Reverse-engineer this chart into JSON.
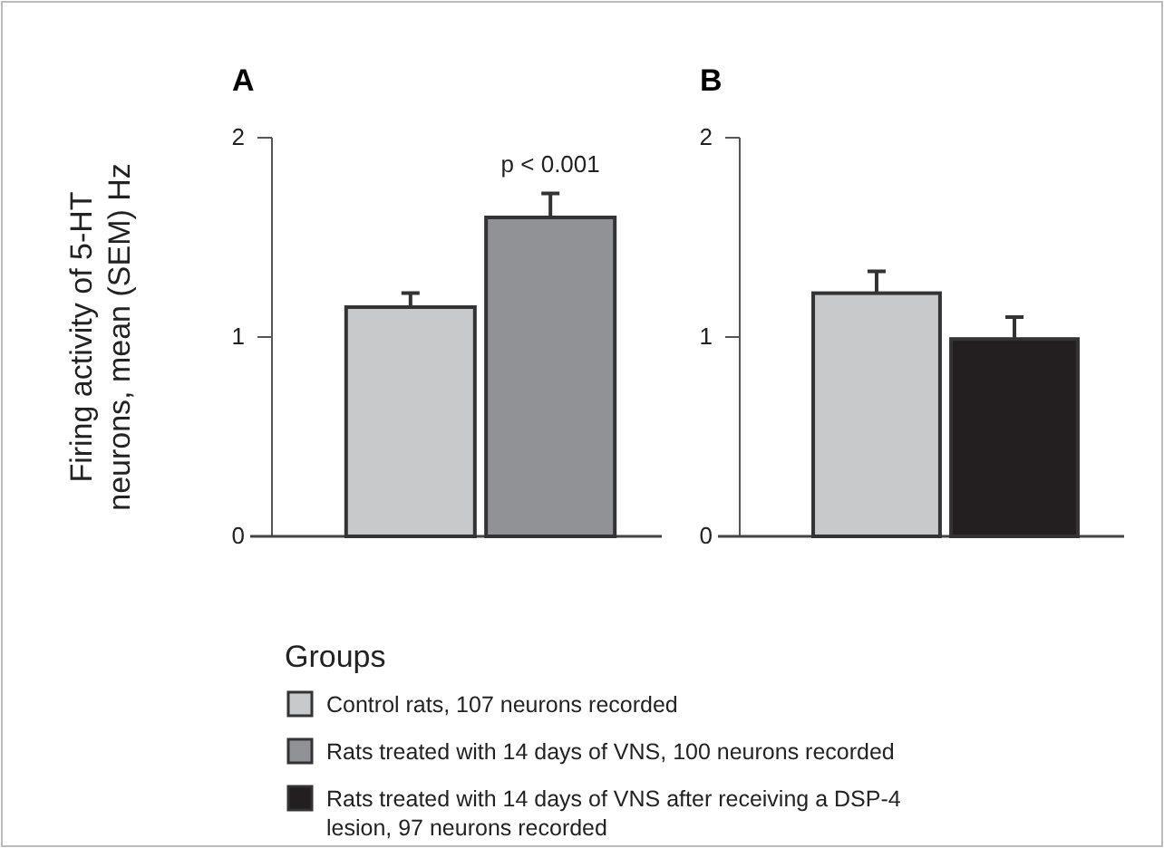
{
  "chart_data": [
    {
      "type": "bar",
      "title": "A",
      "ylabel": "Firing activity of 5-HT neurons, mean (SEM) Hz",
      "categories": [
        null
      ],
      "ylim": [
        0,
        2
      ],
      "yticks": [
        0,
        1,
        2
      ],
      "series": [
        {
          "name": "Control rats, 107 neurons recorded",
          "color": "#c8c9cb",
          "values": [
            1.15
          ],
          "errors": [
            0.07
          ]
        },
        {
          "name": "Rats treated with 14 days of VNS, 100 neurons recorded",
          "color": "#919295",
          "values": [
            1.6
          ],
          "errors": [
            0.12
          ]
        }
      ],
      "annotations": [
        "p < 0.001"
      ],
      "legend": "bottom",
      "legend_title": "Groups"
    },
    {
      "type": "bar",
      "title": "B",
      "categories": [
        null
      ],
      "ylim": [
        0,
        2
      ],
      "yticks": [
        0,
        1,
        2
      ],
      "series": [
        {
          "color": "#c8c9cb",
          "values": [
            1.22
          ],
          "errors": [
            0.11
          ]
        },
        {
          "name": "Rats treated with 14 days of VNS after receiving a DSP-4 lesion, 97 neurons recorded",
          "color": "#231f20",
          "values": [
            0.99
          ],
          "errors": [
            0.11
          ]
        }
      ],
      "legend": "bottom"
    }
  ]
}
